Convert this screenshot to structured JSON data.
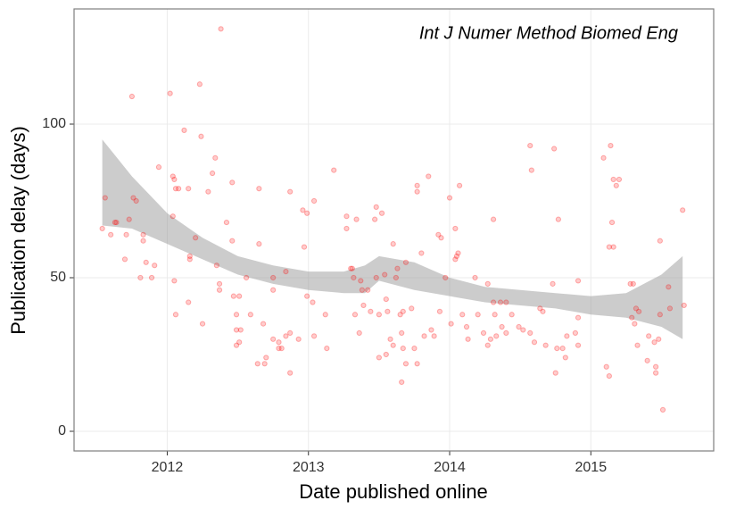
{
  "chart_data": {
    "type": "scatter",
    "title": "Int J Numer Method Biomed Eng",
    "x_label": "Date published online",
    "y_label": "Publication delay (days)",
    "xlim": [
      2011.34,
      2015.87
    ],
    "ylim": [
      -6.4,
      137.5
    ],
    "xticks": [
      2012,
      2013,
      2014,
      2015
    ],
    "yticks": [
      0,
      50,
      100
    ],
    "grid": true,
    "color": "#ff0000",
    "opacity": 0.2,
    "x": [
      2011.54,
      2011.56,
      2011.6,
      2011.63,
      2011.64,
      2011.7,
      2011.71,
      2011.73,
      2011.75,
      2011.76,
      2011.78,
      2011.81,
      2011.83,
      2011.83,
      2011.85,
      2011.89,
      2011.91,
      2011.94,
      2012.02,
      2012.04,
      2012.05,
      2012.06,
      2012.04,
      2012.05,
      2012.06,
      2012.08,
      2012.12,
      2012.15,
      2012.16,
      2012.16,
      2012.15,
      2012.2,
      2012.23,
      2012.24,
      2012.25,
      2012.29,
      2012.32,
      2012.34,
      2012.35,
      2012.38,
      2012.37,
      2012.37,
      2012.42,
      2012.46,
      2012.46,
      2012.47,
      2012.49,
      2012.49,
      2012.49,
      2012.51,
      2012.51,
      2012.52,
      2012.56,
      2012.59,
      2012.65,
      2012.65,
      2012.64,
      2012.68,
      2012.69,
      2012.7,
      2012.75,
      2012.75,
      2012.75,
      2012.79,
      2012.79,
      2012.81,
      2012.84,
      2012.84,
      2012.87,
      2012.87,
      2012.87,
      2012.93,
      2012.96,
      2012.97,
      2012.99,
      2012.99,
      2013.04,
      2013.03,
      2013.04,
      2013.12,
      2013.13,
      2013.18,
      2013.27,
      2013.27,
      2013.3,
      2013.31,
      2013.32,
      2013.34,
      2013.33,
      2013.36,
      2013.37,
      2013.38,
      2013.39,
      2013.42,
      2013.44,
      2013.47,
      2013.48,
      2013.48,
      2013.5,
      2013.5,
      2013.52,
      2013.54,
      2013.55,
      2013.55,
      2013.56,
      2013.58,
      2013.6,
      2013.6,
      2013.62,
      2013.63,
      2013.65,
      2013.66,
      2013.66,
      2013.67,
      2013.67,
      2013.69,
      2013.69,
      2013.73,
      2013.75,
      2013.77,
      2013.77,
      2013.77,
      2013.8,
      2013.82,
      2013.85,
      2013.87,
      2013.89,
      2013.92,
      2013.93,
      2013.94,
      2013.97,
      2014.0,
      2014.01,
      2014.04,
      2014.04,
      2014.05,
      2014.06,
      2014.07,
      2014.09,
      2014.12,
      2014.13,
      2014.18,
      2014.2,
      2014.24,
      2014.27,
      2014.27,
      2014.29,
      2014.31,
      2014.31,
      2014.32,
      2014.33,
      2014.36,
      2014.37,
      2014.4,
      2014.4,
      2014.44,
      2014.49,
      2014.52,
      2014.57,
      2014.57,
      2014.58,
      2014.6,
      2014.64,
      2014.66,
      2014.68,
      2014.73,
      2014.74,
      2014.75,
      2014.76,
      2014.77,
      2014.8,
      2014.82,
      2014.83,
      2014.89,
      2014.91,
      2014.91,
      2014.91,
      2015.09,
      2015.11,
      2015.13,
      2015.13,
      2015.14,
      2015.15,
      2015.16,
      2015.16,
      2015.18,
      2015.2,
      2015.28,
      2015.3,
      2015.29,
      2015.31,
      2015.32,
      2015.34,
      2015.33,
      2015.4,
      2015.41,
      2015.45,
      2015.46,
      2015.46,
      2015.48,
      2015.49,
      2015.49,
      2015.51,
      2015.55,
      2015.56,
      2015.65,
      2015.66
    ],
    "y": [
      66,
      76,
      64,
      68,
      68,
      56,
      64,
      69,
      109,
      76,
      75,
      50,
      64,
      62,
      55,
      50,
      54,
      86,
      110,
      83,
      82,
      79,
      70,
      49,
      38,
      79,
      98,
      79,
      57,
      56,
      42,
      63,
      113,
      96,
      35,
      78,
      84,
      89,
      54,
      131,
      48,
      46,
      68,
      81,
      62,
      44,
      38,
      33,
      28,
      44,
      29,
      33,
      50,
      38,
      79,
      61,
      22,
      35,
      22,
      24,
      50,
      46,
      30,
      27,
      29,
      27,
      52,
      31,
      32,
      78,
      19,
      30,
      72,
      60,
      44,
      71,
      75,
      42,
      31,
      38,
      27,
      85,
      70,
      66,
      53,
      53,
      50,
      69,
      38,
      32,
      49,
      46,
      41,
      46,
      39,
      69,
      73,
      50,
      38,
      24,
      71,
      51,
      43,
      25,
      39,
      30,
      61,
      28,
      50,
      53,
      38,
      32,
      16,
      39,
      27,
      55,
      22,
      40,
      27,
      80,
      78,
      22,
      58,
      31,
      83,
      33,
      31,
      64,
      39,
      63,
      50,
      76,
      35,
      56,
      66,
      57,
      58,
      80,
      38,
      34,
      30,
      50,
      38,
      32,
      48,
      28,
      30,
      69,
      42,
      38,
      31,
      42,
      34,
      42,
      32,
      38,
      34,
      33,
      32,
      93,
      85,
      29,
      40,
      39,
      28,
      48,
      92,
      19,
      27,
      69,
      27,
      24,
      31,
      32,
      49,
      37,
      28,
      89,
      21,
      60,
      18,
      93,
      68,
      60,
      82,
      80,
      82,
      48,
      48,
      37,
      35,
      40,
      39,
      28,
      23,
      31,
      29,
      21,
      19,
      30,
      62,
      38,
      7,
      47,
      40,
      72,
      41
    ],
    "band": {
      "color": "#999999",
      "opacity": 0.5,
      "x": [
        2011.54,
        2011.75,
        2012.0,
        2012.25,
        2012.5,
        2012.75,
        2013.0,
        2013.25,
        2013.4,
        2013.5,
        2013.75,
        2014.0,
        2014.25,
        2014.5,
        2014.75,
        2015.0,
        2015.25,
        2015.5,
        2015.65
      ],
      "lower": [
        67,
        66,
        61,
        56,
        51,
        48,
        46,
        45,
        45,
        49,
        46,
        44,
        42,
        41,
        40,
        38,
        37,
        34,
        30
      ],
      "upper": [
        95,
        83,
        71,
        63,
        57,
        54,
        52,
        52,
        54,
        57,
        55,
        50,
        47,
        46,
        45,
        44,
        45,
        51,
        57
      ]
    }
  }
}
